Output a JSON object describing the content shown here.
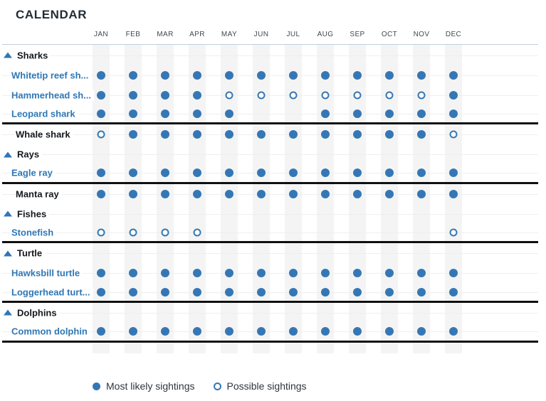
{
  "title": "CALENDAR",
  "colors": {
    "accent_blue": "#3577b4",
    "dark_text": "#14181c",
    "title_text": "#242b33",
    "month_text": "#42484e",
    "column_stripe": "#f4f4f4",
    "row_line": "#edeff0",
    "header_line": "#bccfda",
    "divider_line": "#101010"
  },
  "table": {
    "months": [
      "JAN",
      "FEB",
      "MAR",
      "APR",
      "MAY",
      "JUN",
      "JUL",
      "AUG",
      "SEP",
      "OCT",
      "NOV",
      "DEC"
    ],
    "rows": [
      {
        "kind": "group",
        "label": "Sharks",
        "icon": "triangle-up-icon"
      },
      {
        "kind": "species",
        "label": "Whitetip reef sh...",
        "cells": [
          "most",
          "most",
          "most",
          "most",
          "most",
          "most",
          "most",
          "most",
          "most",
          "most",
          "most",
          "most"
        ]
      },
      {
        "kind": "species",
        "label": "Hammerhead sh...",
        "cells": [
          "most",
          "most",
          "most",
          "most",
          "possible",
          "possible",
          "possible",
          "possible",
          "possible",
          "possible",
          "possible",
          "most"
        ]
      },
      {
        "kind": "species",
        "label": "Leopard shark",
        "cells": [
          "most",
          "most",
          "most",
          "most",
          "most",
          "none",
          "none",
          "most",
          "most",
          "most",
          "most",
          "most"
        ],
        "divider_after": true
      },
      {
        "kind": "standalone",
        "label": "Whale shark",
        "cells": [
          "possible",
          "most",
          "most",
          "most",
          "most",
          "most",
          "most",
          "most",
          "most",
          "most",
          "most",
          "possible"
        ]
      },
      {
        "kind": "group",
        "label": "Rays",
        "icon": "triangle-up-icon"
      },
      {
        "kind": "species",
        "label": "Eagle ray",
        "cells": [
          "most",
          "most",
          "most",
          "most",
          "most",
          "most",
          "most",
          "most",
          "most",
          "most",
          "most",
          "most"
        ],
        "divider_after": true
      },
      {
        "kind": "standalone",
        "label": "Manta ray",
        "cells": [
          "most",
          "most",
          "most",
          "most",
          "most",
          "most",
          "most",
          "most",
          "most",
          "most",
          "most",
          "most"
        ]
      },
      {
        "kind": "group",
        "label": "Fishes",
        "icon": "triangle-up-icon"
      },
      {
        "kind": "species",
        "label": "Stonefish",
        "cells": [
          "possible",
          "possible",
          "possible",
          "possible",
          "none",
          "none",
          "none",
          "none",
          "none",
          "none",
          "none",
          "possible"
        ],
        "divider_after": true
      },
      {
        "kind": "group",
        "label": "Turtle",
        "icon": "triangle-up-icon"
      },
      {
        "kind": "species",
        "label": "Hawksbill turtle",
        "cells": [
          "most",
          "most",
          "most",
          "most",
          "most",
          "most",
          "most",
          "most",
          "most",
          "most",
          "most",
          "most"
        ]
      },
      {
        "kind": "species",
        "label": "Loggerhead turt...",
        "cells": [
          "most",
          "most",
          "most",
          "most",
          "most",
          "most",
          "most",
          "most",
          "most",
          "most",
          "most",
          "most"
        ],
        "divider_after": true
      },
      {
        "kind": "group",
        "label": "Dolphins",
        "icon": "triangle-up-icon"
      },
      {
        "kind": "species",
        "label": "Common dolphin",
        "cells": [
          "most",
          "most",
          "most",
          "most",
          "most",
          "most",
          "most",
          "most",
          "most",
          "most",
          "most",
          "most"
        ],
        "divider_after": true
      }
    ]
  },
  "legend": {
    "items": [
      {
        "type": "most",
        "label": "Most likely sightings"
      },
      {
        "type": "possible",
        "label": "Possible sightings"
      }
    ]
  }
}
